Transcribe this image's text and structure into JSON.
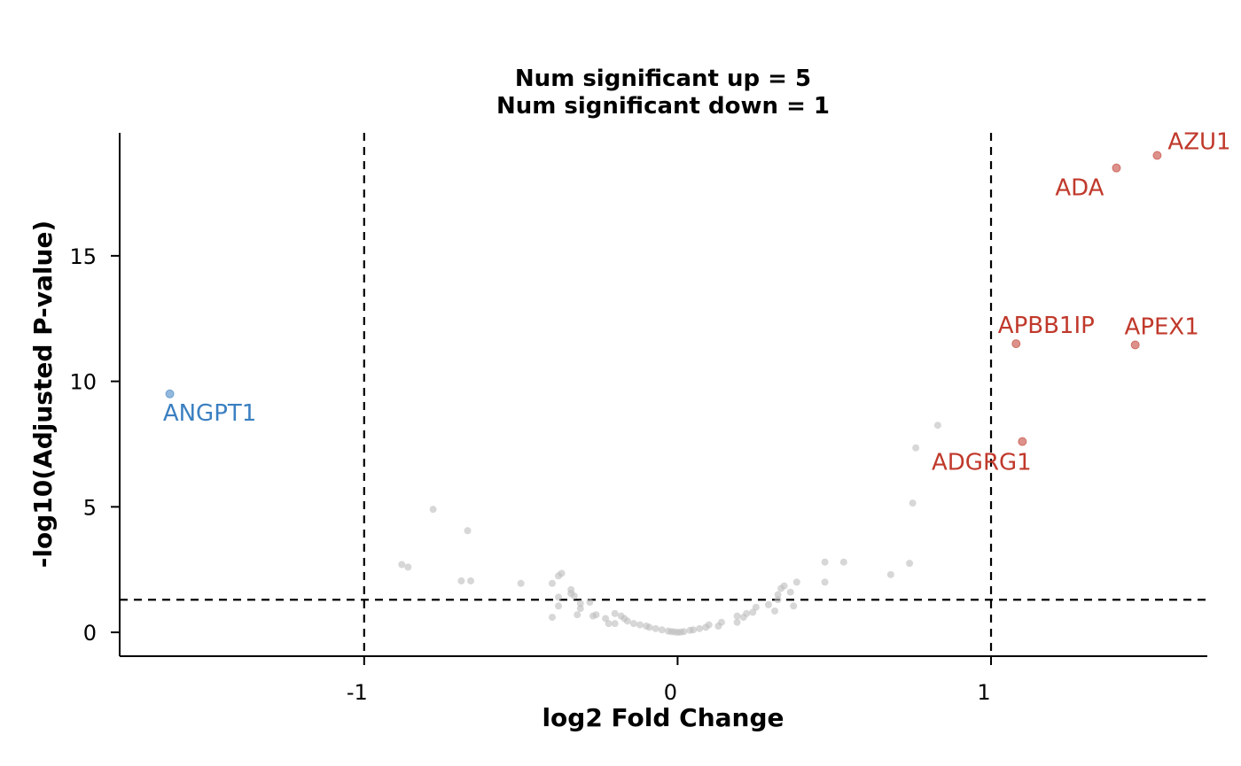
{
  "chart_data": {
    "type": "scatter",
    "title": [
      "Num significant up = 5",
      "Num significant down = 1"
    ],
    "xlabel": "log2 Fold Change",
    "ylabel": "-log10(Adjusted P-value)",
    "xlim": [
      -1.78,
      1.69
    ],
    "ylim": [
      -0.95,
      19.9
    ],
    "xticks": [
      -1,
      0,
      1
    ],
    "xtick_labels": [
      "-1",
      "0",
      "1"
    ],
    "yticks": [
      0,
      5,
      10,
      15
    ],
    "ytick_labels": [
      "0",
      "5",
      "10",
      "15"
    ],
    "thresholds": {
      "log2fc": [
        -1,
        1
      ],
      "neg_log10_padj": 1.3
    },
    "colors": {
      "up": "#c0392b",
      "down": "#3a7fc1",
      "ns": "#bdbdbd"
    },
    "grid": false,
    "legend": "none",
    "significant": [
      {
        "name": "AZU1",
        "x": 1.53,
        "y": 19.0,
        "group": "up"
      },
      {
        "name": "ADA",
        "x": 1.4,
        "y": 18.5,
        "group": "up"
      },
      {
        "name": "APBB1IP",
        "x": 1.08,
        "y": 11.5,
        "group": "up"
      },
      {
        "name": "APEX1",
        "x": 1.46,
        "y": 11.45,
        "group": "up"
      },
      {
        "name": "ADGRG1",
        "x": 1.1,
        "y": 7.6,
        "group": "up"
      },
      {
        "name": "ANGPT1",
        "x": -1.62,
        "y": 9.5,
        "group": "down"
      }
    ],
    "nonsignificant": [
      [
        0.83,
        8.25
      ],
      [
        0.76,
        7.35
      ],
      [
        0.75,
        5.15
      ],
      [
        0.74,
        2.75
      ],
      [
        0.68,
        2.3
      ],
      [
        0.53,
        2.8
      ],
      [
        0.47,
        2.8
      ],
      [
        0.47,
        2.0
      ],
      [
        0.38,
        2.0
      ],
      [
        0.37,
        1.05
      ],
      [
        0.36,
        1.6
      ],
      [
        0.34,
        1.85
      ],
      [
        0.33,
        1.75
      ],
      [
        0.32,
        1.5
      ],
      [
        0.32,
        1.3
      ],
      [
        0.31,
        0.85
      ],
      [
        0.29,
        1.1
      ],
      [
        0.25,
        1.0
      ],
      [
        0.24,
        0.8
      ],
      [
        0.22,
        0.75
      ],
      [
        0.21,
        0.6
      ],
      [
        0.19,
        0.65
      ],
      [
        0.19,
        0.4
      ],
      [
        0.14,
        0.4
      ],
      [
        0.13,
        0.25
      ],
      [
        0.1,
        0.3
      ],
      [
        0.09,
        0.2
      ],
      [
        0.07,
        0.15
      ],
      [
        0.05,
        0.1
      ],
      [
        0.04,
        0.08
      ],
      [
        0.02,
        0.03
      ],
      [
        0.01,
        0.01
      ],
      [
        0.0,
        0.0
      ],
      [
        -0.01,
        0.02
      ],
      [
        -0.02,
        0.03
      ],
      [
        -0.03,
        0.05
      ],
      [
        -0.05,
        0.1
      ],
      [
        -0.07,
        0.15
      ],
      [
        -0.09,
        0.2
      ],
      [
        -0.1,
        0.25
      ],
      [
        -0.12,
        0.3
      ],
      [
        -0.14,
        0.35
      ],
      [
        -0.16,
        0.45
      ],
      [
        -0.17,
        0.55
      ],
      [
        -0.18,
        0.65
      ],
      [
        -0.2,
        0.75
      ],
      [
        -0.2,
        0.35
      ],
      [
        -0.22,
        0.35
      ],
      [
        -0.23,
        0.55
      ],
      [
        -0.26,
        0.7
      ],
      [
        -0.27,
        0.65
      ],
      [
        -0.28,
        1.2
      ],
      [
        -0.31,
        0.95
      ],
      [
        -0.31,
        1.15
      ],
      [
        -0.32,
        0.7
      ],
      [
        -0.33,
        1.45
      ],
      [
        -0.34,
        1.55
      ],
      [
        -0.34,
        1.7
      ],
      [
        -0.38,
        1.4
      ],
      [
        -0.38,
        1.05
      ],
      [
        -0.37,
        2.35
      ],
      [
        -0.38,
        2.25
      ],
      [
        -0.4,
        0.6
      ],
      [
        -0.4,
        1.95
      ],
      [
        -0.5,
        1.95
      ],
      [
        -0.66,
        2.05
      ],
      [
        -0.69,
        2.05
      ],
      [
        -0.67,
        4.05
      ],
      [
        -0.78,
        4.9
      ],
      [
        -0.86,
        2.6
      ],
      [
        -0.88,
        2.7
      ]
    ]
  }
}
